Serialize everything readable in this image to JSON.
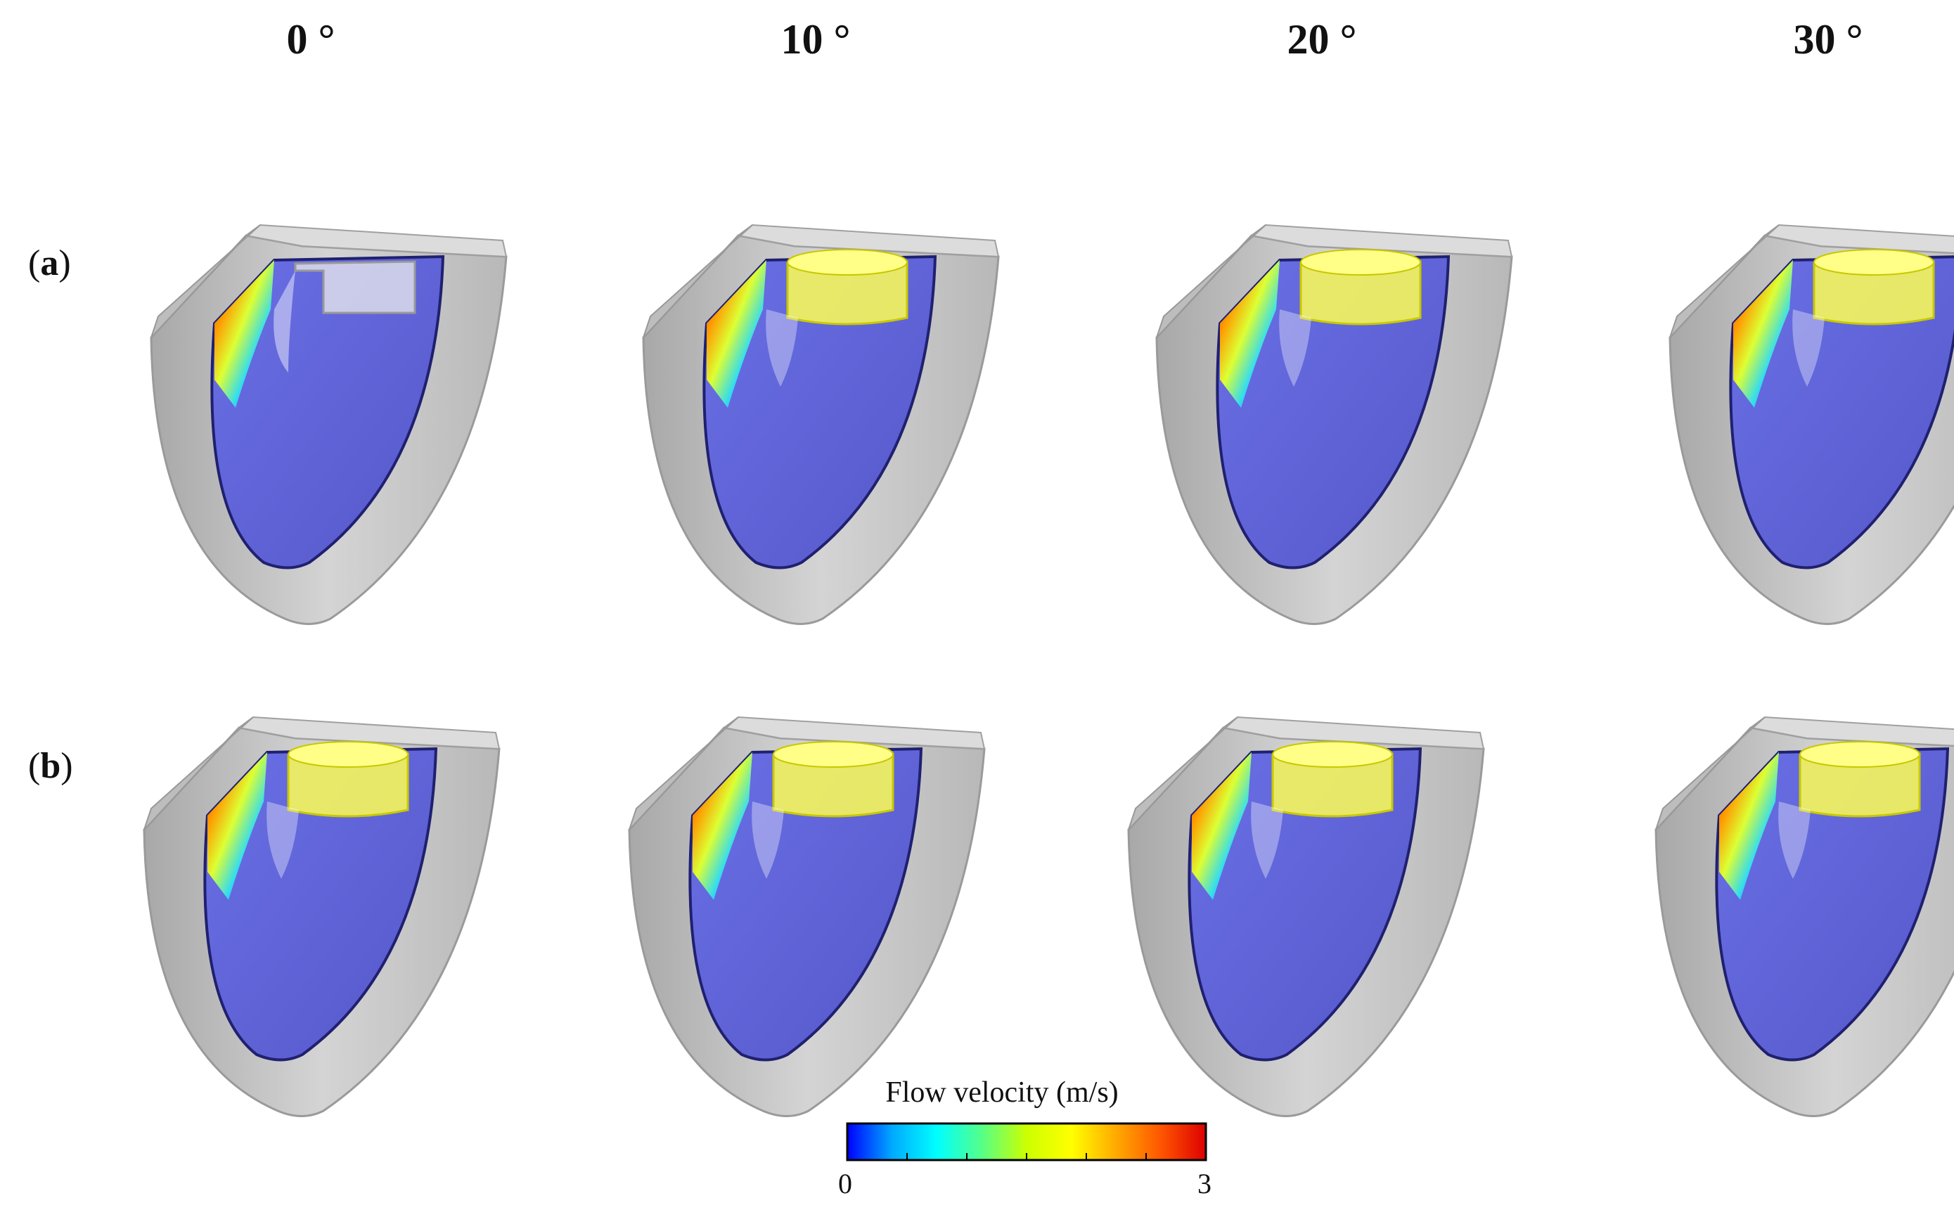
{
  "columns": [
    "0 °",
    "10 °",
    "20 °",
    "30 °"
  ],
  "rows": [
    {
      "open": "(",
      "letter": "a",
      "close": ")"
    },
    {
      "open": "(",
      "letter": "b",
      "close": ")"
    }
  ],
  "colorbar": {
    "title": "Flow velocity (m/s)",
    "min_label": "0",
    "max_label": "3",
    "colors": [
      "#0000ff",
      "#00aaff",
      "#00ffff",
      "#55ff88",
      "#ccff00",
      "#ffff00",
      "#ffaa00",
      "#ff5500",
      "#dd0000"
    ]
  },
  "palette": {
    "wall": "#c8c8c8",
    "cavity": "#5f63d8",
    "valve": "#ffff44"
  }
}
